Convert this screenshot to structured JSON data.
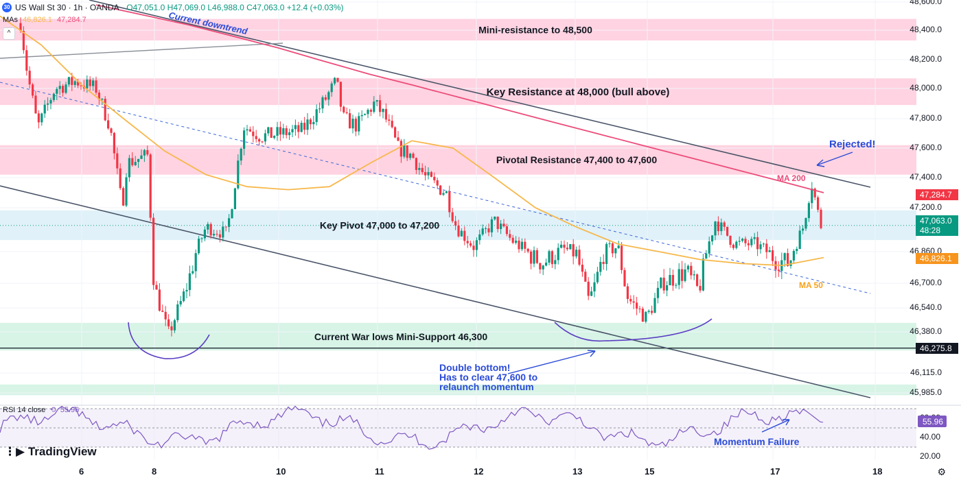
{
  "header": {
    "symbol_badge": "30",
    "title": "US Wall St 30 · 1h · OANDA",
    "ohlc": "O47,051.0 H47,069.0 L46,988.0 C47,063.0 +12.4 (+0.03%)",
    "mas_label": "MAs",
    "ma50_value": "46,826.1",
    "ma200_value": "47,284.7",
    "rsi_label": "RSI 14 close",
    "rsi_value": "55.96",
    "logo": "TradingView"
  },
  "colors": {
    "up": "#089981",
    "down": "#f23645",
    "ma50": "#f7b84b",
    "ma200": "#ec4c7a",
    "zone_red": "#ffc1d4",
    "zone_blue": "#d6ecf7",
    "zone_green": "#c6f0dc",
    "annotation": "#2a4bd7",
    "rsi": "#7e57c2"
  },
  "chart_data": {
    "type": "candlestick",
    "title": "US Wall St 30 · 1h · OANDA",
    "y_axis_ticks": [
      48600,
      48400,
      48200,
      48000,
      47800,
      47600,
      47400,
      47200,
      46860,
      46700,
      46540,
      46380,
      46115,
      45985
    ],
    "y_axis_labels": [
      "48,600.0",
      "48,400.0",
      "48,200.0",
      "48,000.0",
      "47,800.0",
      "47,600.0",
      "47,400.0",
      "47,200.0",
      "46,860.0",
      "46,700.0",
      "46,540.0",
      "46,380.0",
      "46,115.0",
      "45,985.0"
    ],
    "x_axis_labels": [
      "6",
      "8",
      "10",
      "11",
      "12",
      "13",
      "15",
      "17",
      "18"
    ],
    "price_labels": [
      {
        "text": "47,284.7",
        "value": 47284.7,
        "color": "#f23645"
      },
      {
        "text": "47,063.0",
        "sub": "48:28",
        "value": 47063,
        "color": "#089981"
      },
      {
        "text": "46,826.1",
        "value": 46826.1,
        "color": "#f7941d"
      },
      {
        "text": "46,275.8",
        "value": 46275.8,
        "color": "#131722"
      }
    ],
    "zones": [
      {
        "label": "Mini-resistance to 48,500",
        "from": 48330,
        "to": 48480,
        "kind": "resistance"
      },
      {
        "label": "Key Resistance at 48,000 (bull above)",
        "from": 47890,
        "to": 48070,
        "kind": "resistance"
      },
      {
        "label": "Pivotal Resistance 47,400 to 47,600",
        "from": 47420,
        "to": 47620,
        "kind": "resistance"
      },
      {
        "label": "Key Pivot 47,000 to 47,200",
        "from": 46950,
        "to": 47180,
        "kind": "pivot"
      },
      {
        "label": "Current War lows Mini-Support 46,300",
        "from": 46260,
        "to": 46440,
        "kind": "support"
      },
      {
        "label": "",
        "from": 45970,
        "to": 46040,
        "kind": "support"
      }
    ],
    "annotations": {
      "trend": "Current downtrend",
      "rejected": "Rejected!",
      "ma200": "MA 200",
      "ma50": "MA 50",
      "double_bottom": [
        "Double bottom!",
        "Has to clear 47,600 to",
        "relaunch momentum"
      ],
      "momentum": "Momentum Failure"
    },
    "series": [
      {
        "name": "MA 50",
        "values": [
          48500,
          48300,
          48020,
          47800,
          47580,
          47420,
          47340,
          47320,
          47340,
          47500,
          47650,
          47600,
          47400,
          47200,
          47050,
          46920,
          46860,
          46820,
          46800,
          46790,
          46830
        ]
      },
      {
        "name": "MA 200",
        "values": [
          48580,
          48510,
          48440,
          48360,
          48280,
          48190,
          48100,
          48020,
          47940,
          47860,
          47780,
          47700,
          47620,
          47540,
          47460,
          47380,
          47300
        ]
      }
    ],
    "rsi": {
      "name": "RSI 14 close",
      "last": 55.96,
      "levels": [
        70,
        50,
        30
      ],
      "ticks": [
        "60.00",
        "40.00",
        "20.00"
      ]
    }
  }
}
